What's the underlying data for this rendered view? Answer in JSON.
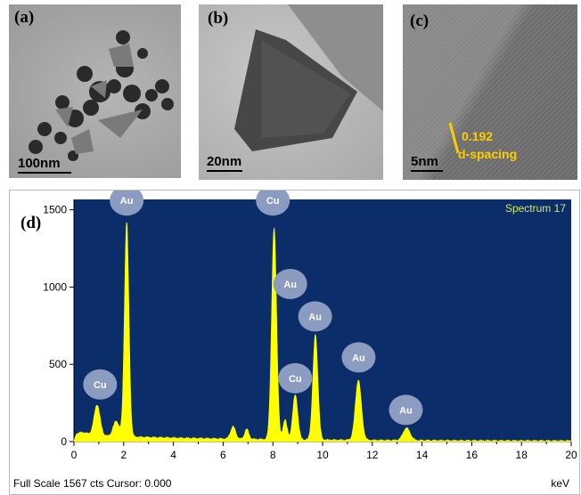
{
  "panels": {
    "a": {
      "label": "(a)",
      "scale": "100nm"
    },
    "b": {
      "label": "(b)",
      "scale": "20nm"
    },
    "c": {
      "label": "(c)",
      "scale": "5nm",
      "spacing_value": "0.192",
      "spacing_label": "d-spacing"
    },
    "d": {
      "label": "(d)"
    }
  },
  "spectrum": {
    "name": "Spectrum 17",
    "footer_left": "Full Scale 1567 cts Cursor: 0.000",
    "footer_right": "keV"
  },
  "colors": {
    "plot_bg": "#0b2e6b",
    "spectrum": "#ffff00",
    "peak_marker": "#8c9bc0",
    "name_text": "#d6e65a"
  },
  "chart_data": {
    "type": "area",
    "title": "Spectrum 17",
    "xlabel": "keV",
    "ylabel": "",
    "xlim": [
      0,
      20
    ],
    "ylim": [
      0,
      1567
    ],
    "xticks": [
      0,
      2,
      4,
      6,
      8,
      10,
      12,
      14,
      16,
      18,
      20
    ],
    "yticks": [
      0,
      500,
      1000,
      1500
    ],
    "grid": false,
    "baseline": 40,
    "peaks": [
      {
        "element": "Cu",
        "x": 0.93,
        "y": 200,
        "width": 0.12
      },
      {
        "element": "Au",
        "x": 2.12,
        "y": 1390,
        "width": 0.09
      },
      {
        "element": "Cu",
        "x": 8.05,
        "y": 1370,
        "width": 0.1
      },
      {
        "element": "Au",
        "x": 8.49,
        "y": 130,
        "width": 0.08
      },
      {
        "element": "Cu",
        "x": 8.9,
        "y": 290,
        "width": 0.1
      },
      {
        "element": "Au",
        "x": 9.71,
        "y": 680,
        "width": 0.1
      },
      {
        "element": "Au",
        "x": 11.44,
        "y": 390,
        "width": 0.12
      },
      {
        "element": "Au",
        "x": 13.38,
        "y": 80,
        "width": 0.14
      }
    ],
    "minor_peaks": [
      {
        "x": 1.7,
        "y": 100,
        "width": 0.12
      },
      {
        "x": 6.4,
        "y": 80,
        "width": 0.1
      },
      {
        "x": 6.95,
        "y": 65,
        "width": 0.08
      }
    ],
    "peak_labels": [
      {
        "text": "Cu",
        "x": 1.05,
        "y": 370
      },
      {
        "text": "Au",
        "x": 2.12,
        "y": 1560
      },
      {
        "text": "Cu",
        "x": 8.0,
        "y": 1560
      },
      {
        "text": "Au",
        "x": 8.7,
        "y": 1020
      },
      {
        "text": "Cu",
        "x": 8.9,
        "y": 410
      },
      {
        "text": "Au",
        "x": 9.7,
        "y": 810
      },
      {
        "text": "Au",
        "x": 11.45,
        "y": 545
      },
      {
        "text": "Au",
        "x": 13.35,
        "y": 205
      }
    ]
  }
}
